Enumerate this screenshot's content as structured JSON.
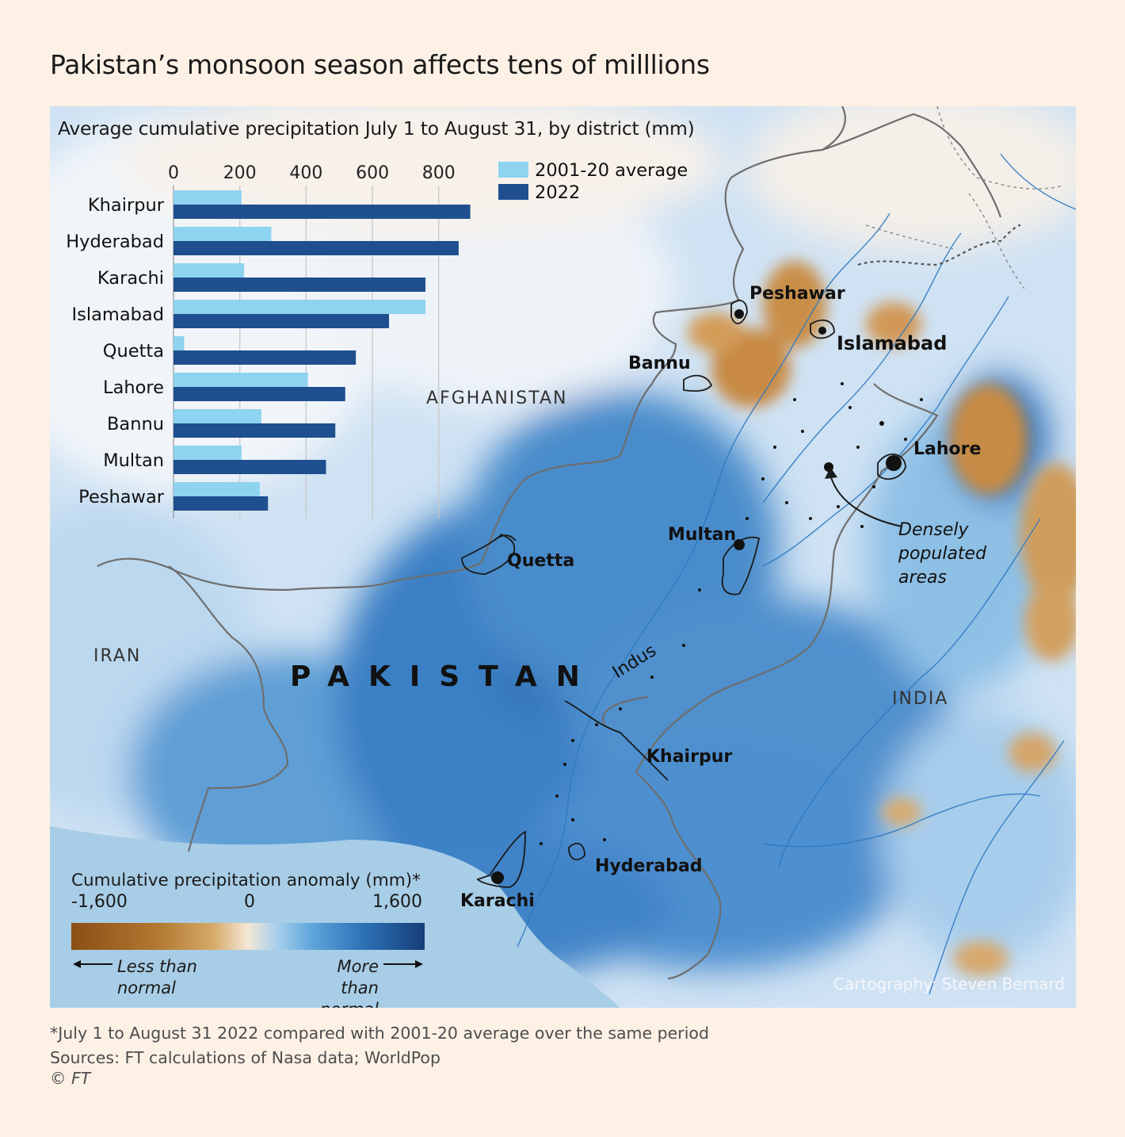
{
  "title": "Pakistan’s monsoon season affects tens of milllions",
  "chart_data": {
    "type": "bar",
    "orientation": "horizontal",
    "title": "Average cumulative precipitation July 1 to August 31, by district (mm)",
    "xlim": [
      0,
      900
    ],
    "xticks": [
      "0",
      "200",
      "400",
      "600",
      "800"
    ],
    "tick_values": [
      0,
      200,
      400,
      600,
      800
    ],
    "categories": [
      "Khairpur",
      "Hyderabad",
      "Karachi",
      "Islamabad",
      "Quetta",
      "Lahore",
      "Bannu",
      "Multan",
      "Peshawar"
    ],
    "series": [
      {
        "name": "2001-20 average",
        "color": "#8ed3ef",
        "values": [
          205,
          295,
          213,
          760,
          32,
          405,
          265,
          205,
          260
        ]
      },
      {
        "name": "2022",
        "color": "#1f4f8e",
        "values": [
          895,
          860,
          760,
          650,
          550,
          518,
          488,
          460,
          285
        ]
      }
    ],
    "legend_position": "top-right"
  },
  "map": {
    "countries": [
      "AFGHANISTAN",
      "IRAN",
      "INDIA"
    ],
    "country_main": "PAKISTAN",
    "river": "Indus",
    "cities": [
      "Peshawar",
      "Islamabad",
      "Bannu",
      "Lahore",
      "Quetta",
      "Multan",
      "Khairpur",
      "Hyderabad",
      "Karachi"
    ],
    "annotation": [
      "Densely",
      "populated",
      "areas"
    ]
  },
  "legend": {
    "title": "Cumulative precipitation anomaly (mm)*",
    "tick_min": "-1,600",
    "tick_mid": "0",
    "tick_max": "1,600",
    "less_label_1": "Less than",
    "less_label_2": "normal",
    "more_label_1": "More than",
    "more_label_2": "normal",
    "colors": [
      "#8a4f15",
      "#f4e7d6",
      "#163e78"
    ]
  },
  "credit": "Cartography: Steven Bernard",
  "footnote": "*July 1 to August 31 2022 compared with 2001-20 average over the same period",
  "sources": "Sources: FT calculations of Nasa data; WorldPop",
  "copyright": "© FT"
}
